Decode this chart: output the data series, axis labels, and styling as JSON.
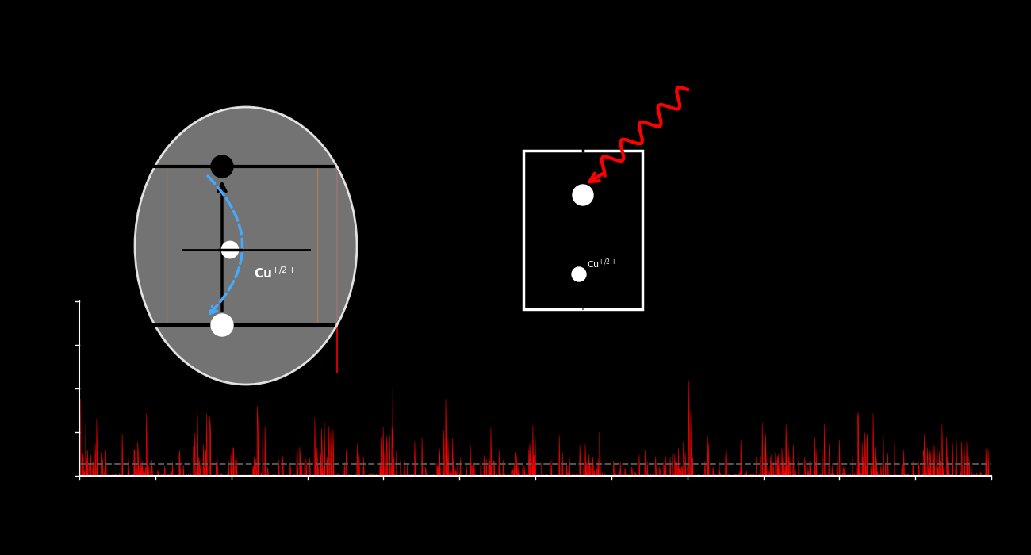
{
  "bg_color": "#000000",
  "fig_width": 13.0,
  "fig_height": 7.0,
  "pl_trace_color": "#ff0000",
  "ellipse_color": "#888888",
  "ellipse_alpha": 0.85,
  "blue_arrow_color": "#44aaff",
  "squiggle_color": "#ff0000",
  "cu_label": "Cu$^{+/2+}$",
  "white": "#ffffff",
  "black": "#000000",
  "dashed_color": "#222222"
}
